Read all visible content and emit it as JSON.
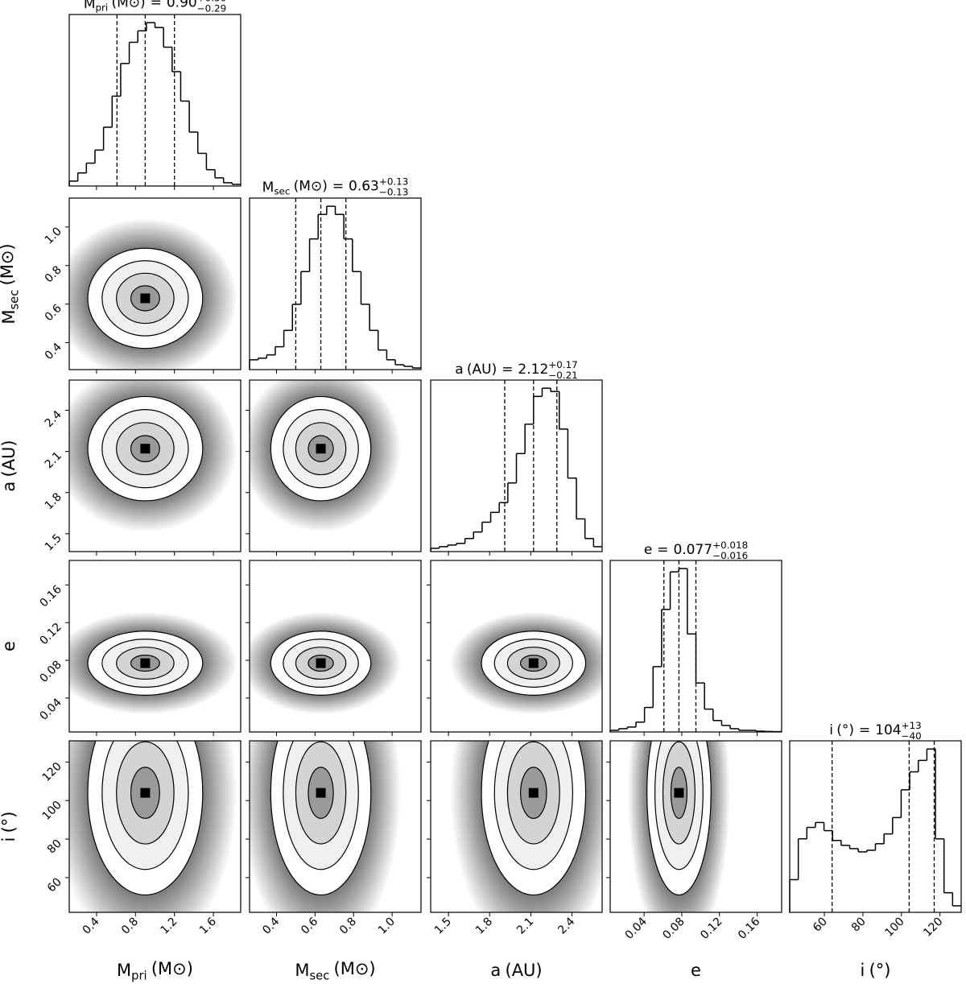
{
  "chart_data": {
    "type": "corner",
    "sign": "=",
    "params": [
      {
        "symbol": "M",
        "sub": "pri",
        "unit": "(M⊙)",
        "value": "0.90",
        "plus": "+0.30",
        "minus": "−0.29",
        "lim": [
          0.12,
          1.88
        ],
        "ticks": [
          0.4,
          0.8,
          1.2,
          1.6
        ],
        "quantiles": [
          0.61,
          0.9,
          1.2
        ],
        "hist_ylim": [
          0,
          1.05
        ],
        "bins": [
          0.12,
          0.208,
          0.296,
          0.384,
          0.472,
          0.56,
          0.648,
          0.736,
          0.824,
          0.912,
          1.0,
          1.088,
          1.176,
          1.264,
          1.352,
          1.44,
          1.528,
          1.616,
          1.704,
          1.792,
          1.88
        ],
        "counts": [
          0.03,
          0.08,
          0.14,
          0.22,
          0.36,
          0.55,
          0.75,
          0.88,
          0.95,
          1.0,
          0.97,
          0.85,
          0.7,
          0.52,
          0.33,
          0.2,
          0.1,
          0.05,
          0.02,
          0.01
        ]
      },
      {
        "symbol": "M",
        "sub": "sec",
        "unit": "(M⊙)",
        "value": "0.63",
        "plus": "+0.13",
        "minus": "−0.13",
        "lim": [
          0.26,
          1.15
        ],
        "ticks": [
          0.4,
          0.6,
          0.8,
          {
            "value": 1.0,
            "label": "1.0"
          }
        ],
        "quantiles": [
          0.5,
          0.63,
          0.76
        ],
        "hist_ylim": [
          0,
          1.05
        ],
        "bins": [
          0.26,
          0.3045,
          0.349,
          0.3935,
          0.438,
          0.4825,
          0.527,
          0.5715,
          0.616,
          0.6605,
          0.705,
          0.7495,
          0.794,
          0.8385,
          0.883,
          0.9275,
          0.972,
          1.0165,
          1.061,
          1.1055,
          1.15
        ],
        "counts": [
          0.06,
          0.07,
          0.09,
          0.14,
          0.24,
          0.4,
          0.6,
          0.8,
          0.95,
          1.0,
          0.95,
          0.8,
          0.6,
          0.4,
          0.24,
          0.12,
          0.06,
          0.03,
          0.02,
          0.01
        ]
      },
      {
        "symbol": "a",
        "unit": "(AU)",
        "value": "2.12",
        "plus": "+0.17",
        "minus": "−0.21",
        "lim": [
          1.37,
          2.62
        ],
        "ticks": [
          1.5,
          1.8,
          2.1,
          2.4
        ],
        "quantiles": [
          1.91,
          2.12,
          2.29
        ],
        "hist_ylim": [
          0,
          1.05
        ],
        "bins": [
          1.37,
          1.4325,
          1.495,
          1.5575,
          1.62,
          1.6825,
          1.745,
          1.8075,
          1.87,
          1.9325,
          1.995,
          2.0575,
          2.12,
          2.1825,
          2.245,
          2.3075,
          2.37,
          2.4325,
          2.495,
          2.5575,
          2.62
        ],
        "counts": [
          0.02,
          0.03,
          0.04,
          0.05,
          0.08,
          0.12,
          0.18,
          0.24,
          0.3,
          0.42,
          0.6,
          0.78,
          0.95,
          1.0,
          0.98,
          0.75,
          0.45,
          0.2,
          0.08,
          0.03
        ]
      },
      {
        "symbol": "e",
        "value": "0.077",
        "plus": "+0.018",
        "minus": "−0.016",
        "lim": [
          0.004,
          0.186
        ],
        "ticks": [
          0.04,
          0.08,
          0.12,
          0.16
        ],
        "quantiles": [
          0.061,
          0.077,
          0.095
        ],
        "hist_ylim": [
          0,
          1.05
        ],
        "bins": [
          0.004,
          0.0131,
          0.0222,
          0.0313,
          0.0404,
          0.0495,
          0.0586,
          0.0677,
          0.0768,
          0.0859,
          0.095,
          0.1041,
          0.1132,
          0.1223,
          0.1314,
          0.1405,
          0.1496,
          0.1587,
          0.1678,
          0.1769,
          0.186
        ],
        "counts": [
          0.01,
          0.02,
          0.03,
          0.06,
          0.15,
          0.4,
          0.75,
          0.98,
          1.0,
          0.6,
          0.3,
          0.14,
          0.07,
          0.04,
          0.02,
          0.01,
          0.01,
          0.005,
          0.003,
          0.002
        ]
      },
      {
        "symbol": "i",
        "unit": "(°)",
        "value": "104",
        "plus": "+13",
        "minus": "−40",
        "lim": [
          42,
          131
        ],
        "ticks": [
          60,
          80,
          100,
          120
        ],
        "quantiles": [
          64,
          104,
          117
        ],
        "hist_ylim": [
          0,
          1.05
        ],
        "bins": [
          42,
          46.45,
          50.9,
          55.35,
          59.8,
          64.25,
          68.7,
          73.15,
          77.6,
          82.05,
          86.5,
          90.95,
          95.4,
          99.85,
          104.3,
          108.75,
          113.2,
          117.65,
          122.1,
          126.55,
          131
        ],
        "counts": [
          0.2,
          0.45,
          0.52,
          0.55,
          0.5,
          0.44,
          0.41,
          0.39,
          0.37,
          0.38,
          0.42,
          0.48,
          0.58,
          0.75,
          0.86,
          0.93,
          1.0,
          0.45,
          0.12,
          0.04
        ]
      }
    ]
  }
}
